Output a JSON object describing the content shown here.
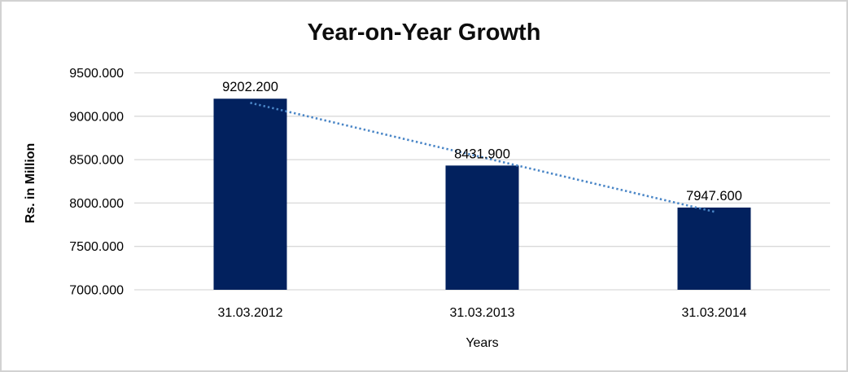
{
  "frame": {
    "background": "#ffffff",
    "border_color": "#d2d2d2"
  },
  "chart_data": {
    "type": "bar",
    "title": "Year-on-Year Growth",
    "xlabel": "Years",
    "ylabel": "Rs. in Million",
    "categories": [
      "31.03.2012",
      "31.03.2013",
      "31.03.2014"
    ],
    "values": [
      9202.2,
      8431.9,
      7947.6
    ],
    "value_labels": [
      "9202.200",
      "8431.900",
      "7947.600"
    ],
    "yticks": [
      7000,
      7500,
      8000,
      8500,
      9000,
      9500
    ],
    "ytick_labels": [
      "7000.000",
      "7500.000",
      "8000.000",
      "8500.000",
      "9000.000",
      "9500.000"
    ],
    "ylim": [
      7000,
      9500
    ],
    "grid": true,
    "legend": false,
    "bar_color": "#02215e",
    "gridline_color": "#d9d9d9",
    "label_color": "#000000",
    "trendline": {
      "type": "linear",
      "color": "#4a86c7",
      "style": "dotted"
    }
  }
}
